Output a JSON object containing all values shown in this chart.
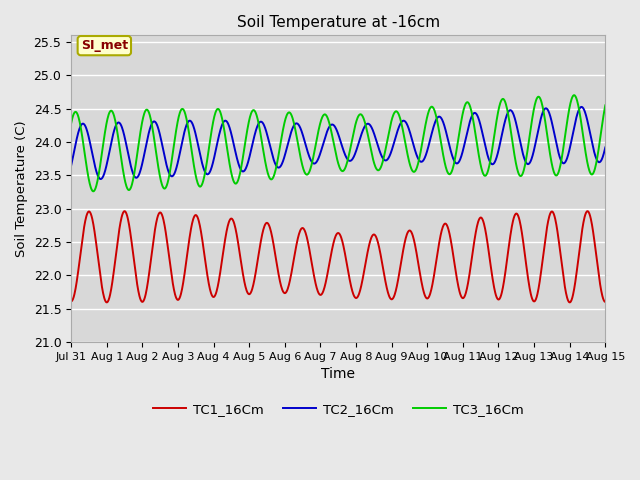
{
  "title": "Soil Temperature at -16cm",
  "xlabel": "Time",
  "ylabel": "Soil Temperature (C)",
  "ylim": [
    21.0,
    25.6
  ],
  "yticks": [
    21.0,
    21.5,
    22.0,
    22.5,
    23.0,
    23.5,
    24.0,
    24.5,
    25.0,
    25.5
  ],
  "fig_bg": "#e8e8e8",
  "plot_bg": "#d8d8d8",
  "grid_color": "#ffffff",
  "tc1_color": "#cc0000",
  "tc2_color": "#0000cc",
  "tc3_color": "#00cc00",
  "line_width": 1.4,
  "watermark_text": "SI_met",
  "watermark_bg": "#ffffcc",
  "watermark_fg": "#880000",
  "watermark_border": "#aaaa00",
  "legend_labels": [
    "TC1_16Cm",
    "TC2_16Cm",
    "TC3_16Cm"
  ],
  "tc1_base": 22.28,
  "tc1_amp": 0.58,
  "tc1_trend_per_day": 0.0,
  "tc1_phase": -1.5707963,
  "tc2_base": 23.85,
  "tc2_amp": 0.42,
  "tc2_trend_per_day": 0.018,
  "tc2_phase": -0.5,
  "tc3_base": 23.85,
  "tc3_amp": 0.6,
  "tc3_trend_per_day": 0.018,
  "tc3_phase": 0.8,
  "amp_mod_tc1": 0.12,
  "amp_mod_period_tc1": 13,
  "amp_dip_day_tc1": 8.5,
  "amp_dip_tc1": 0.08,
  "n_days": 15,
  "xlim_end": 15
}
